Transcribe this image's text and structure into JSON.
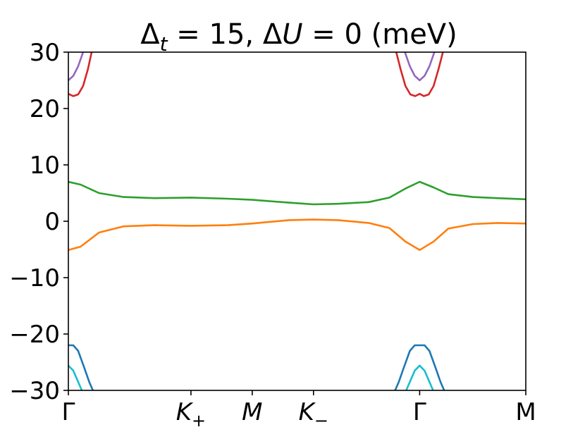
{
  "chart_data": {
    "type": "line",
    "title": {
      "delta_symbol_1": "Δ",
      "sub_t": "t",
      "eq_1": " = 15, ",
      "delta_symbol_2": "Δ",
      "u_italic": "U",
      "eq_2": " = 0 (meV)"
    },
    "xlabel": "",
    "ylabel": "",
    "ylim": [
      -30,
      30
    ],
    "xlim": [
      0,
      3.732
    ],
    "yticks": [
      {
        "value": 30,
        "label": "30"
      },
      {
        "value": 20,
        "label": "20"
      },
      {
        "value": 10,
        "label": "10"
      },
      {
        "value": 0,
        "label": "0"
      },
      {
        "value": -10,
        "label": "−10"
      },
      {
        "value": -20,
        "label": "−20"
      },
      {
        "value": -30,
        "label": "−30"
      }
    ],
    "xticks": [
      {
        "value": 0,
        "label": "Γ",
        "italic": false,
        "sub": ""
      },
      {
        "value": 1.0,
        "label": "K",
        "italic": true,
        "sub": "+"
      },
      {
        "value": 1.5,
        "label": "M",
        "italic": true,
        "sub": ""
      },
      {
        "value": 2.0,
        "label": "K",
        "italic": true,
        "sub": "−"
      },
      {
        "value": 2.866,
        "label": "Γ",
        "italic": false,
        "sub": ""
      },
      {
        "value": 3.732,
        "label": "M",
        "italic": false,
        "sub": ""
      }
    ],
    "series": [
      {
        "color": "#2ca02c",
        "points": [
          [
            0,
            7.0
          ],
          [
            0.1,
            6.5
          ],
          [
            0.25,
            5.0
          ],
          [
            0.45,
            4.3
          ],
          [
            0.7,
            4.1
          ],
          [
            1.0,
            4.2
          ],
          [
            1.3,
            4.0
          ],
          [
            1.5,
            3.8
          ],
          [
            1.8,
            3.3
          ],
          [
            2.0,
            3.0
          ],
          [
            2.2,
            3.1
          ],
          [
            2.45,
            3.4
          ],
          [
            2.62,
            4.2
          ],
          [
            2.75,
            5.8
          ],
          [
            2.866,
            7.0
          ],
          [
            2.98,
            6.0
          ],
          [
            3.1,
            4.8
          ],
          [
            3.3,
            4.3
          ],
          [
            3.5,
            4.1
          ],
          [
            3.732,
            3.9
          ]
        ]
      },
      {
        "color": "#ff7f0e",
        "points": [
          [
            0,
            -5.1
          ],
          [
            0.1,
            -4.5
          ],
          [
            0.25,
            -2.0
          ],
          [
            0.45,
            -0.9
          ],
          [
            0.7,
            -0.7
          ],
          [
            1.0,
            -0.8
          ],
          [
            1.3,
            -0.7
          ],
          [
            1.5,
            -0.4
          ],
          [
            1.8,
            0.2
          ],
          [
            2.0,
            0.3
          ],
          [
            2.2,
            0.2
          ],
          [
            2.45,
            -0.3
          ],
          [
            2.62,
            -1.2
          ],
          [
            2.75,
            -3.6
          ],
          [
            2.866,
            -5.1
          ],
          [
            2.98,
            -3.6
          ],
          [
            3.1,
            -1.3
          ],
          [
            3.3,
            -0.5
          ],
          [
            3.5,
            -0.3
          ],
          [
            3.732,
            -0.4
          ]
        ]
      },
      {
        "color": "#d62728",
        "points": [
          [
            0,
            22.6
          ],
          [
            0.04,
            22.2
          ],
          [
            0.08,
            22.5
          ],
          [
            0.12,
            24.0
          ],
          [
            0.16,
            27.0
          ],
          [
            0.19,
            30.0
          ]
        ]
      },
      {
        "color": "#d62728",
        "points": [
          [
            2.675,
            30.0
          ],
          [
            2.71,
            27.0
          ],
          [
            2.75,
            24.0
          ],
          [
            2.79,
            22.5
          ],
          [
            2.83,
            22.2
          ],
          [
            2.866,
            22.6
          ],
          [
            2.9,
            22.2
          ],
          [
            2.94,
            22.5
          ],
          [
            2.98,
            24.0
          ],
          [
            3.02,
            27.0
          ],
          [
            3.056,
            30.0
          ]
        ]
      },
      {
        "color": "#9467bd",
        "points": [
          [
            0,
            25.0
          ],
          [
            0.04,
            25.8
          ],
          [
            0.08,
            27.5
          ],
          [
            0.12,
            30.0
          ]
        ]
      },
      {
        "color": "#9467bd",
        "points": [
          [
            2.746,
            30.0
          ],
          [
            2.786,
            27.5
          ],
          [
            2.826,
            25.8
          ],
          [
            2.866,
            25.0
          ],
          [
            2.906,
            25.8
          ],
          [
            2.946,
            27.5
          ],
          [
            2.986,
            30.0
          ]
        ]
      },
      {
        "color": "#1f77b4",
        "points": [
          [
            0,
            -22.0
          ],
          [
            0.04,
            -22.0
          ],
          [
            0.08,
            -23.0
          ],
          [
            0.13,
            -26.0
          ],
          [
            0.17,
            -28.5
          ],
          [
            0.2,
            -30.0
          ]
        ]
      },
      {
        "color": "#1f77b4",
        "points": [
          [
            2.666,
            -30.0
          ],
          [
            2.696,
            -28.5
          ],
          [
            2.736,
            -26.0
          ],
          [
            2.786,
            -23.0
          ],
          [
            2.826,
            -22.0
          ],
          [
            2.866,
            -22.0
          ],
          [
            2.906,
            -22.0
          ],
          [
            2.946,
            -23.0
          ],
          [
            2.996,
            -26.0
          ],
          [
            3.036,
            -28.5
          ],
          [
            3.066,
            -30.0
          ]
        ]
      },
      {
        "color": "#17becf",
        "points": [
          [
            0,
            -25.6
          ],
          [
            0.04,
            -26.5
          ],
          [
            0.08,
            -28.5
          ],
          [
            0.11,
            -30.0
          ]
        ]
      },
      {
        "color": "#17becf",
        "points": [
          [
            2.756,
            -30.0
          ],
          [
            2.786,
            -28.5
          ],
          [
            2.826,
            -26.5
          ],
          [
            2.866,
            -25.6
          ],
          [
            2.906,
            -26.5
          ],
          [
            2.946,
            -28.5
          ],
          [
            2.976,
            -30.0
          ]
        ]
      }
    ]
  }
}
